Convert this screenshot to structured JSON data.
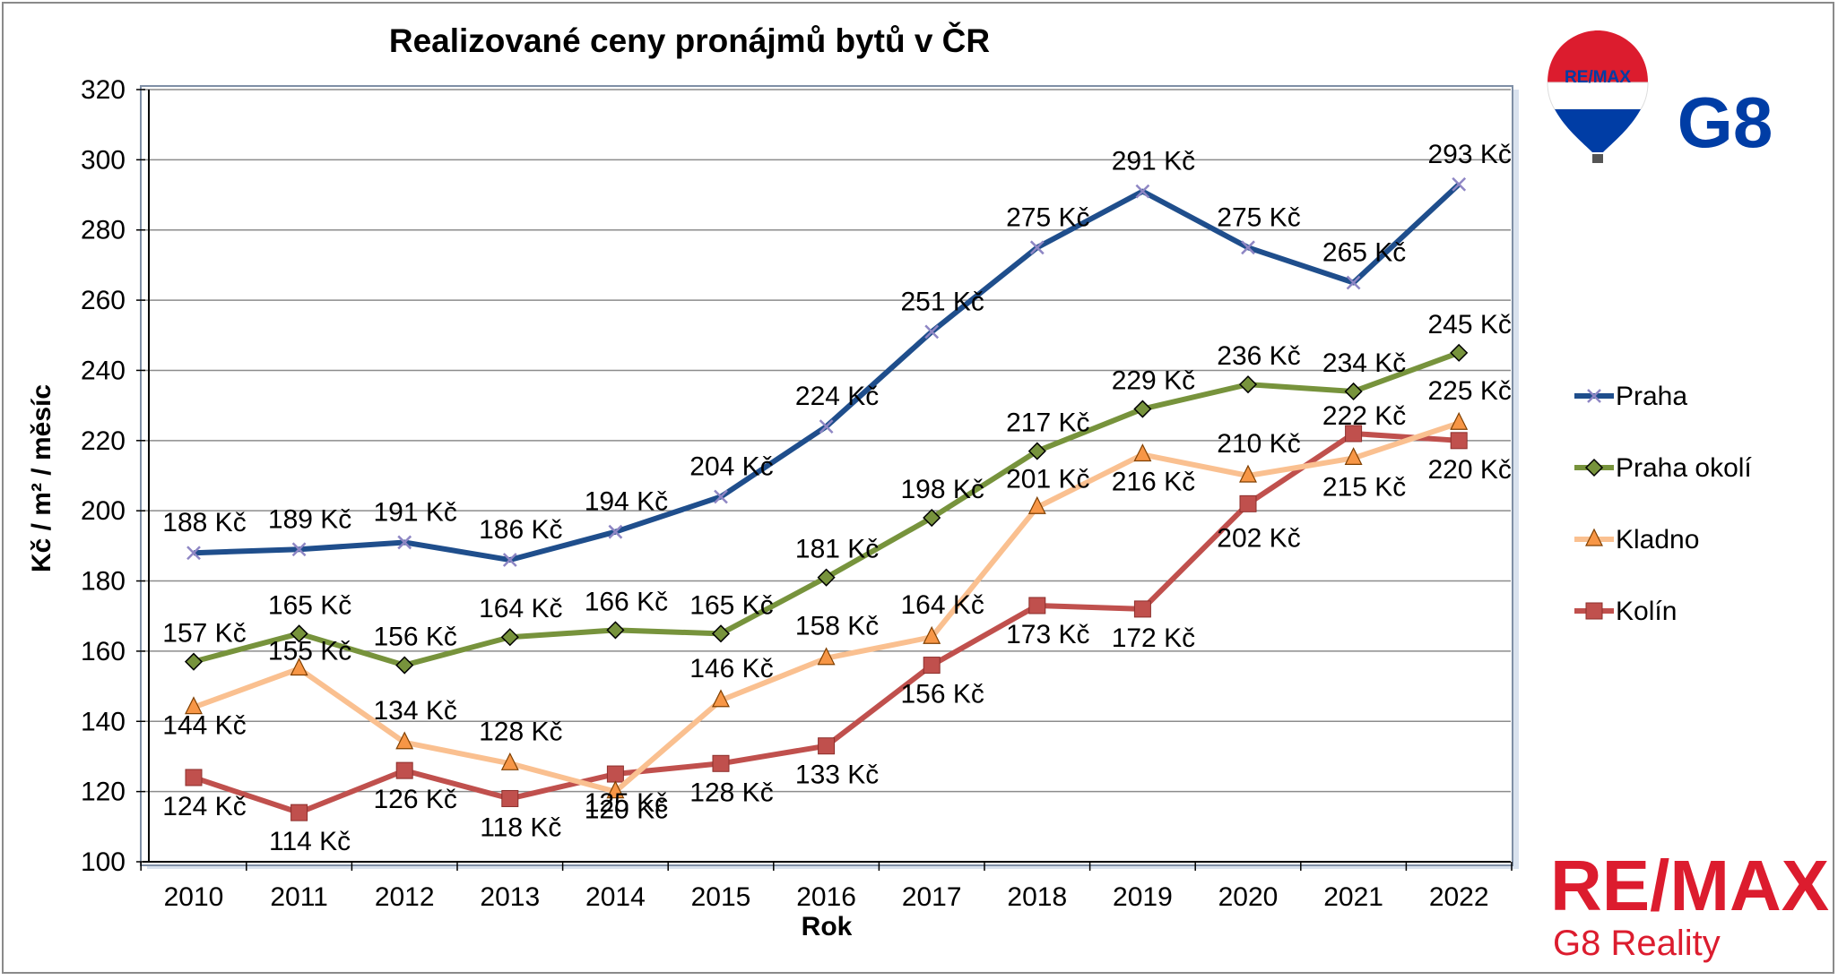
{
  "chart_data": {
    "type": "line",
    "title": "Realizované ceny pronájmů bytů v ČR",
    "xlabel": "Rok",
    "ylabel": "Kč / m² / měsíc",
    "ylim": [
      100,
      320
    ],
    "yticks": [
      "100",
      "120",
      "140",
      "160",
      "180",
      "200",
      "220",
      "240",
      "260",
      "280",
      "300",
      "320"
    ],
    "grid": true,
    "legend_position": "right",
    "categories": [
      "2010",
      "2011",
      "2012",
      "2013",
      "2014",
      "2015",
      "2016",
      "2017",
      "2018",
      "2019",
      "2020",
      "2021",
      "2022"
    ],
    "series": [
      {
        "name": "Praha",
        "color": "#1f4e8c",
        "marker": "x",
        "values": [
          188,
          189,
          191,
          186,
          194,
          204,
          224,
          251,
          275,
          291,
          275,
          265,
          293
        ],
        "labels": [
          "188 Kč",
          "189 Kč",
          "191 Kč",
          "186 Kč",
          "194 Kč",
          "204 Kč",
          "224 Kč",
          "251 Kč",
          "275 Kč",
          "291 Kč",
          "275 Kč",
          "265 Kč",
          "293 Kč"
        ]
      },
      {
        "name": "Praha okolí",
        "color": "#77933c",
        "marker": "diamond",
        "values": [
          157,
          165,
          156,
          164,
          166,
          165,
          181,
          198,
          217,
          229,
          236,
          234,
          245
        ],
        "labels": [
          "157 Kč",
          "165 Kč",
          "156 Kč",
          "164 Kč",
          "166 Kč",
          "165 Kč",
          "181 Kč",
          "198 Kč",
          "217 Kč",
          "229 Kč",
          "236 Kč",
          "234 Kč",
          "245 Kč"
        ]
      },
      {
        "name": "Kladno",
        "color": "#fac090",
        "marker": "triangle",
        "values": [
          144,
          155,
          134,
          128,
          120,
          146,
          158,
          164,
          201,
          216,
          210,
          215,
          225
        ],
        "labels": [
          "144 Kč",
          "155 Kč",
          "134 Kč",
          "128 Kč",
          "120 Kč",
          "146 Kč",
          "158 Kč",
          "164 Kč",
          "201 Kč",
          "216 Kč",
          "210 Kč",
          "215 Kč",
          "225 Kč"
        ]
      },
      {
        "name": "Kolín",
        "color": "#c0504d",
        "marker": "square",
        "values": [
          124,
          114,
          126,
          118,
          125,
          128,
          133,
          156,
          173,
          172,
          202,
          222,
          220
        ],
        "labels": [
          "124 Kč",
          "114 Kč",
          "126 Kč",
          "118 Kč",
          "125 Kč",
          "128 Kč",
          "133 Kč",
          "156 Kč",
          "173 Kč",
          "172 Kč",
          "202 Kč",
          "222 Kč",
          "220 Kč"
        ]
      }
    ]
  },
  "logos": {
    "balloon_text": "RE/MAX",
    "g8_text": "G8",
    "remax_text": "RE/MAX",
    "reality_text": "G8 Reality",
    "colors": {
      "red": "#dc1c2e",
      "blue": "#003da5"
    }
  }
}
